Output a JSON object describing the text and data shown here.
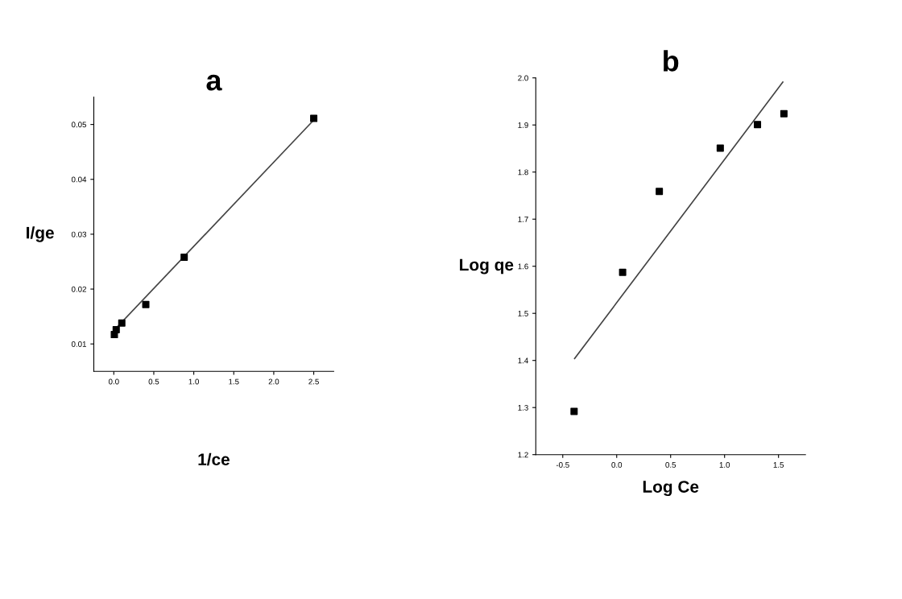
{
  "chart_data": [
    {
      "type": "scatter",
      "title": "a",
      "xlabel": "1/ce",
      "ylabel": "I/ge",
      "xlim": [
        -0.25,
        2.75
      ],
      "ylim": [
        0.005,
        0.055
      ],
      "xticks": [
        {
          "value": 0,
          "label": "0.0"
        },
        0.5,
        {
          "value": 1,
          "label": "1.0"
        },
        1.5,
        {
          "value": 2,
          "label": "2.0"
        },
        2.5
      ],
      "yticks": [
        0.01,
        0.02,
        0.03,
        0.04,
        0.05
      ],
      "grid": false,
      "legend": false,
      "series": [
        {
          "marker": "square",
          "color": "#000000",
          "x": [
            0.007,
            0.03,
            0.1,
            0.4,
            0.88,
            2.5
          ],
          "values": [
            0.0117,
            0.0126,
            0.0138,
            0.0172,
            0.0258,
            0.0511
          ]
        },
        {
          "type": "line",
          "marker": "none",
          "color": "#444444",
          "x": [
            0.05,
            2.5
          ],
          "values": [
            0.0132,
            0.0508
          ]
        }
      ]
    },
    {
      "type": "scatter",
      "title": "b",
      "xlabel": "Log Ce",
      "ylabel": "Log qe",
      "xlim": [
        -0.75,
        1.75
      ],
      "ylim": [
        1.2,
        2.0
      ],
      "xticks": [
        -0.5,
        {
          "value": 0,
          "label": "0.0"
        },
        0.5,
        {
          "value": 1,
          "label": "1.0"
        },
        1.5
      ],
      "yticks": [
        {
          "value": 1.2,
          "label": "1.2"
        },
        1.3,
        1.4,
        1.5,
        1.6,
        1.7,
        1.8,
        1.9,
        {
          "value": 2,
          "label": "2.0"
        }
      ],
      "grid": false,
      "legend": false,
      "series": [
        {
          "marker": "square",
          "color": "#000000",
          "x": [
            -0.395,
            0.055,
            0.395,
            0.96,
            1.305,
            1.55
          ],
          "values": [
            1.292,
            1.587,
            1.759,
            1.851,
            1.901,
            1.924
          ]
        },
        {
          "type": "line",
          "marker": "none",
          "color": "#444444",
          "x": [
            -0.39,
            1.54
          ],
          "values": [
            1.404,
            1.991
          ]
        }
      ]
    }
  ]
}
